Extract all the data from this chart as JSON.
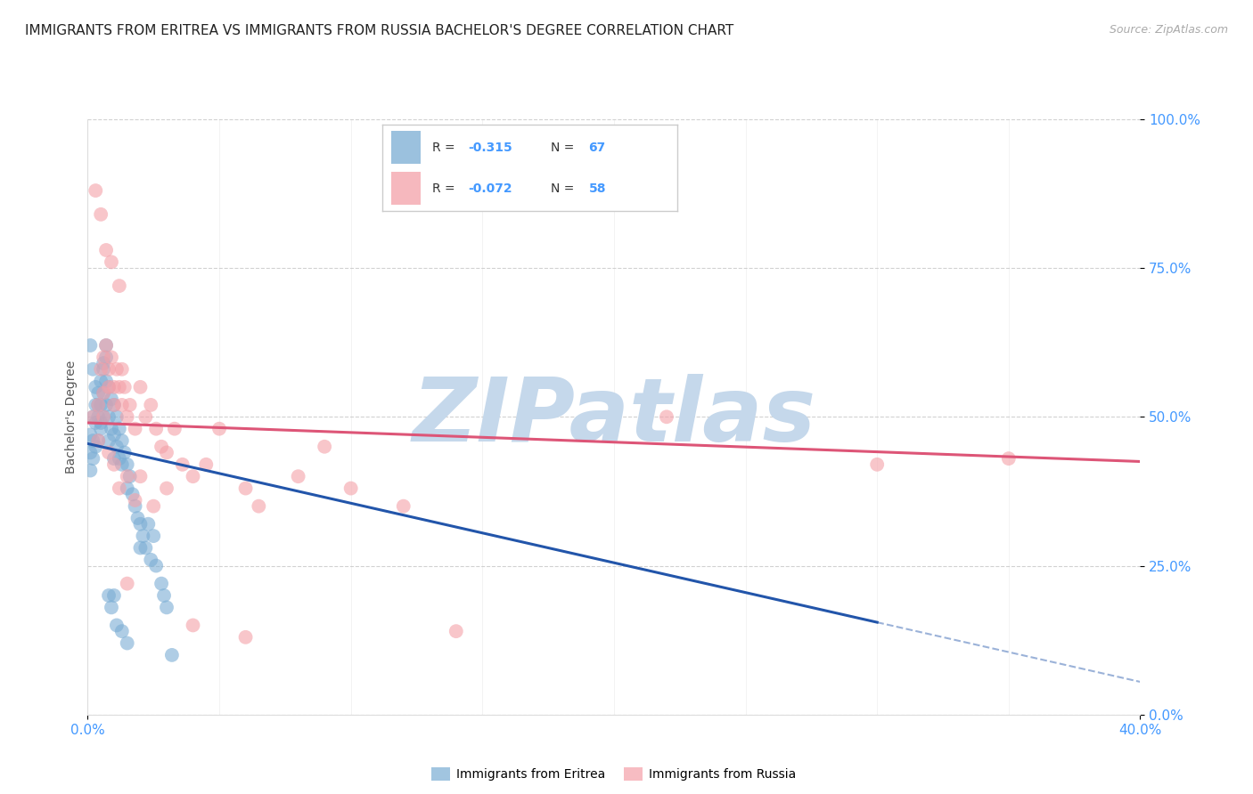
{
  "title": "IMMIGRANTS FROM ERITREA VS IMMIGRANTS FROM RUSSIA BACHELOR'S DEGREE CORRELATION CHART",
  "source": "Source: ZipAtlas.com",
  "ylabel": "Bachelor's Degree",
  "yticks_labels": [
    "100.0%",
    "75.0%",
    "50.0%",
    "25.0%",
    "0.0%"
  ],
  "ytick_vals": [
    1.0,
    0.75,
    0.5,
    0.25,
    0.0
  ],
  "xtick_labels": [
    "0.0%",
    "40.0%"
  ],
  "xtick_vals": [
    0.0,
    0.4
  ],
  "R_eritrea": -0.315,
  "N_eritrea": 67,
  "R_russia": -0.072,
  "N_russia": 58,
  "blue_color": "#7aadd4",
  "pink_color": "#f4a0a8",
  "blue_line_color": "#2255aa",
  "pink_line_color": "#dd5577",
  "blue_line_x0": 0.0,
  "blue_line_y0": 0.455,
  "blue_line_x1": 0.3,
  "blue_line_y1": 0.155,
  "blue_line_ext_x1": 0.4,
  "blue_line_ext_y1": 0.055,
  "pink_line_x0": 0.0,
  "pink_line_y0": 0.49,
  "pink_line_x1": 0.4,
  "pink_line_y1": 0.425,
  "xlim": [
    0.0,
    0.4
  ],
  "ylim": [
    0.0,
    1.0
  ],
  "background_color": "#ffffff",
  "watermark_text": "ZIPatlas",
  "watermark_color": "#c5d8eb",
  "watermark_fontsize": 72,
  "title_fontsize": 11,
  "axis_label_fontsize": 10,
  "tick_fontsize": 11,
  "legend_fontsize": 10,
  "tick_color": "#4499ff",
  "grid_color": "#cccccc",
  "eritrea_x": [
    0.001,
    0.001,
    0.001,
    0.002,
    0.002,
    0.002,
    0.003,
    0.003,
    0.003,
    0.004,
    0.004,
    0.004,
    0.005,
    0.005,
    0.005,
    0.006,
    0.006,
    0.006,
    0.007,
    0.007,
    0.007,
    0.008,
    0.008,
    0.008,
    0.009,
    0.009,
    0.01,
    0.01,
    0.01,
    0.011,
    0.011,
    0.012,
    0.012,
    0.013,
    0.013,
    0.014,
    0.015,
    0.015,
    0.016,
    0.017,
    0.018,
    0.019,
    0.02,
    0.02,
    0.021,
    0.022,
    0.023,
    0.024,
    0.025,
    0.026,
    0.028,
    0.029,
    0.03,
    0.001,
    0.002,
    0.003,
    0.004,
    0.005,
    0.006,
    0.007,
    0.008,
    0.009,
    0.01,
    0.011,
    0.013,
    0.015,
    0.032
  ],
  "eritrea_y": [
    0.47,
    0.44,
    0.41,
    0.5,
    0.46,
    0.43,
    0.52,
    0.49,
    0.45,
    0.54,
    0.5,
    0.46,
    0.56,
    0.52,
    0.48,
    0.58,
    0.54,
    0.5,
    0.6,
    0.56,
    0.52,
    0.55,
    0.5,
    0.46,
    0.53,
    0.48,
    0.52,
    0.47,
    0.43,
    0.5,
    0.45,
    0.48,
    0.43,
    0.46,
    0.42,
    0.44,
    0.42,
    0.38,
    0.4,
    0.37,
    0.35,
    0.33,
    0.32,
    0.28,
    0.3,
    0.28,
    0.32,
    0.26,
    0.3,
    0.25,
    0.22,
    0.2,
    0.18,
    0.62,
    0.58,
    0.55,
    0.52,
    0.49,
    0.59,
    0.62,
    0.2,
    0.18,
    0.2,
    0.15,
    0.14,
    0.12,
    0.1
  ],
  "russia_x": [
    0.002,
    0.004,
    0.005,
    0.006,
    0.006,
    0.007,
    0.008,
    0.008,
    0.009,
    0.01,
    0.01,
    0.011,
    0.012,
    0.013,
    0.013,
    0.014,
    0.015,
    0.016,
    0.018,
    0.02,
    0.022,
    0.024,
    0.026,
    0.028,
    0.03,
    0.033,
    0.036,
    0.04,
    0.045,
    0.05,
    0.06,
    0.065,
    0.08,
    0.09,
    0.1,
    0.12,
    0.14,
    0.004,
    0.006,
    0.008,
    0.01,
    0.012,
    0.015,
    0.018,
    0.02,
    0.025,
    0.03,
    0.003,
    0.005,
    0.007,
    0.009,
    0.012,
    0.015,
    0.22,
    0.3,
    0.35,
    0.04,
    0.06
  ],
  "russia_y": [
    0.5,
    0.52,
    0.58,
    0.54,
    0.6,
    0.62,
    0.58,
    0.55,
    0.6,
    0.55,
    0.52,
    0.58,
    0.55,
    0.52,
    0.58,
    0.55,
    0.5,
    0.52,
    0.48,
    0.55,
    0.5,
    0.52,
    0.48,
    0.45,
    0.44,
    0.48,
    0.42,
    0.4,
    0.42,
    0.48,
    0.38,
    0.35,
    0.4,
    0.45,
    0.38,
    0.35,
    0.14,
    0.46,
    0.5,
    0.44,
    0.42,
    0.38,
    0.4,
    0.36,
    0.4,
    0.35,
    0.38,
    0.88,
    0.84,
    0.78,
    0.76,
    0.72,
    0.22,
    0.5,
    0.42,
    0.43,
    0.15,
    0.13
  ]
}
